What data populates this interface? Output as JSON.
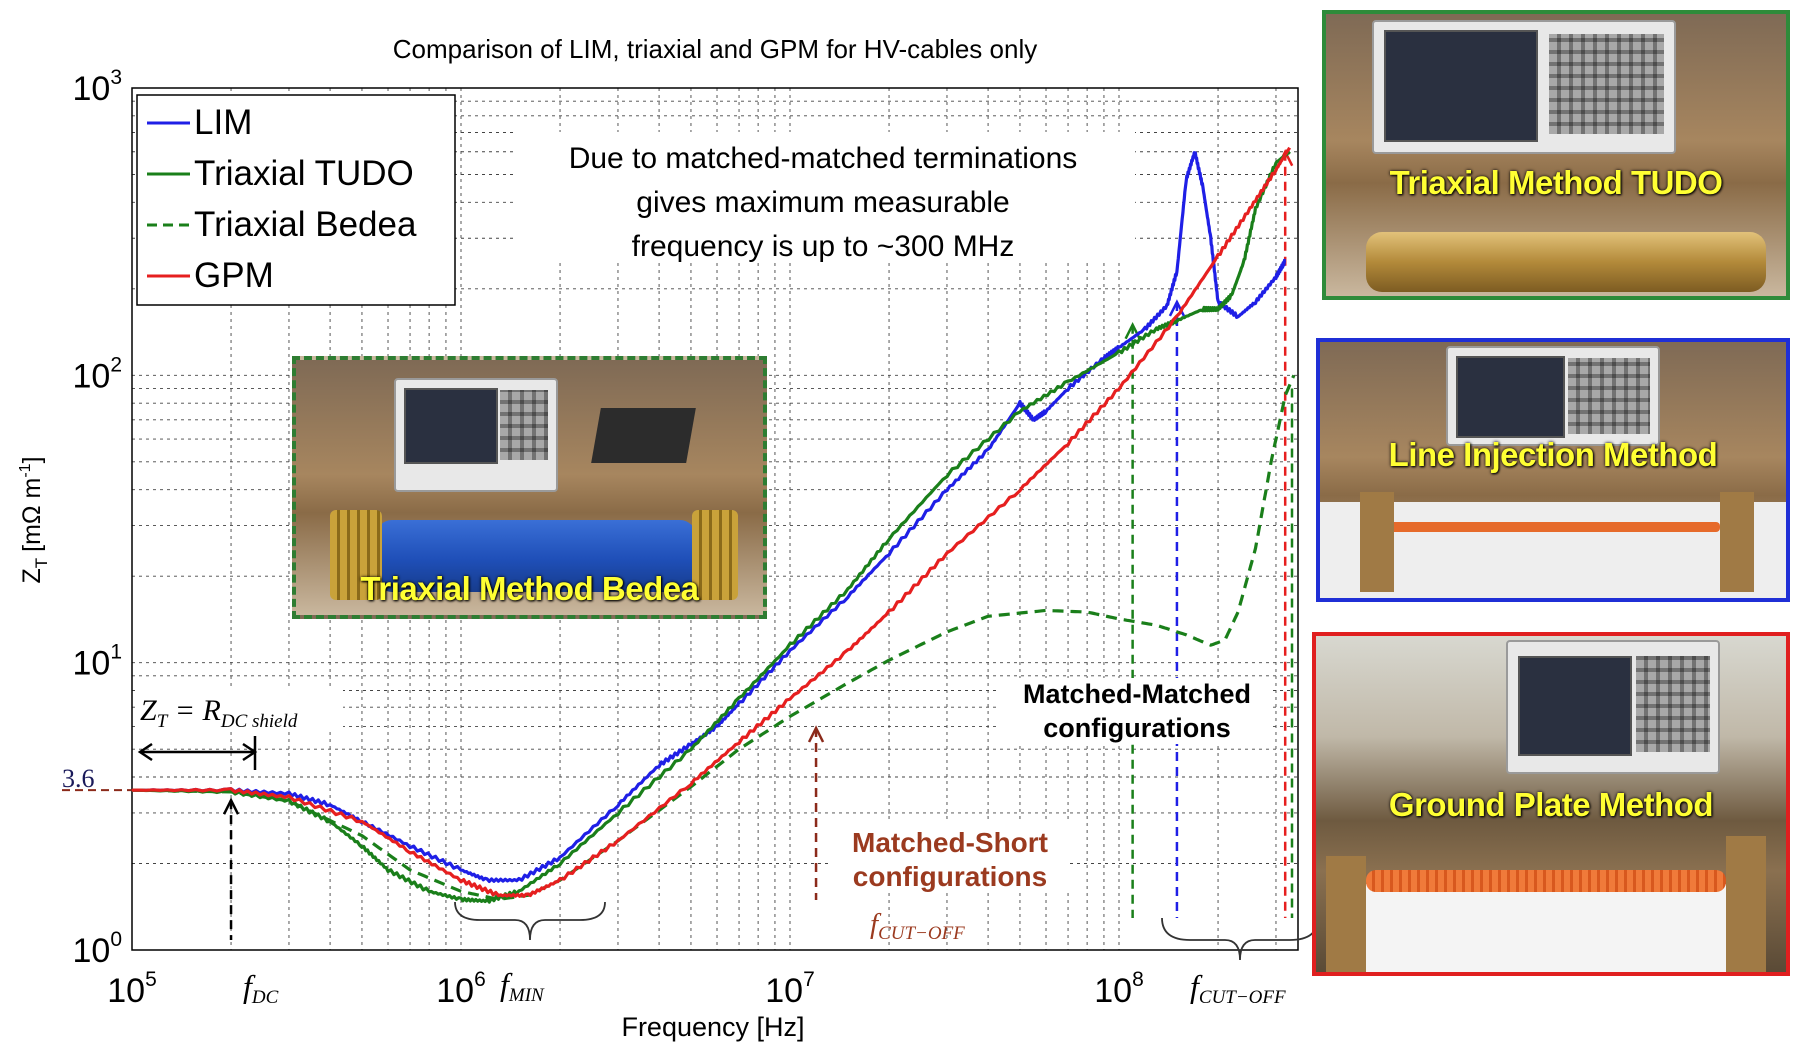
{
  "chart_data": {
    "type": "line",
    "title": "Comparison of LIM,  triaxial and GPM for HV-cables only",
    "xlabel": "Frequency [Hz]",
    "ylabel": "Z",
    "ylabel_sub": "T",
    "ylabel_unit": "[mΩ m",
    "ylabel_sup": "-1",
    "ylabel_close": "]",
    "x_scale": "log",
    "y_scale": "log",
    "xlim": [
      100000,
      350000000
    ],
    "ylim": [
      1,
      1000
    ],
    "x_ticks": [
      {
        "value": 100000,
        "base": "10",
        "exp": "5"
      },
      {
        "value": 1000000,
        "base": "10",
        "exp": "6"
      },
      {
        "value": 10000000,
        "base": "10",
        "exp": "7"
      },
      {
        "value": 100000000,
        "base": "10",
        "exp": "8"
      }
    ],
    "y_ticks": [
      {
        "value": 1,
        "base": "10",
        "exp": "0"
      },
      {
        "value": 10,
        "base": "10",
        "exp": "1"
      },
      {
        "value": 100,
        "base": "10",
        "exp": "2"
      },
      {
        "value": 1000,
        "base": "10",
        "exp": "3"
      }
    ],
    "grid": true,
    "legend_position": "top-left",
    "series": [
      {
        "name": "LIM",
        "color": "#1f1fe6",
        "style": "solid",
        "points": [
          [
            100000,
            3.6
          ],
          [
            200000,
            3.6
          ],
          [
            300000,
            3.5
          ],
          [
            400000,
            3.2
          ],
          [
            500000,
            2.8
          ],
          [
            700000,
            2.3
          ],
          [
            1000000,
            1.9
          ],
          [
            1200000,
            1.75
          ],
          [
            1500000,
            1.75
          ],
          [
            2000000,
            2.1
          ],
          [
            3000000,
            3.2
          ],
          [
            4000000,
            4.4
          ],
          [
            5000000,
            5.2
          ],
          [
            6000000,
            6.0
          ],
          [
            7000000,
            7.2
          ],
          [
            10000000,
            11.0
          ],
          [
            15000000,
            17.0
          ],
          [
            20000000,
            24.0
          ],
          [
            30000000,
            40.0
          ],
          [
            40000000,
            55.0
          ],
          [
            50000000,
            80.0
          ],
          [
            55000000,
            70.0
          ],
          [
            60000000,
            75.0
          ],
          [
            70000000,
            90.0
          ],
          [
            90000000,
            115.0
          ],
          [
            100000000,
            125.0
          ],
          [
            120000000,
            145.0
          ],
          [
            140000000,
            175.0
          ],
          [
            150000000,
            230.0
          ],
          [
            160000000,
            480.0
          ],
          [
            170000000,
            600.0
          ],
          [
            180000000,
            450.0
          ],
          [
            190000000,
            300.0
          ],
          [
            200000000,
            180.0
          ],
          [
            230000000,
            160.0
          ],
          [
            260000000,
            180.0
          ],
          [
            300000000,
            220.0
          ],
          [
            320000000,
            250.0
          ]
        ]
      },
      {
        "name": "Triaxial TUDO",
        "color": "#1a7f1a",
        "style": "solid",
        "points": [
          [
            100000,
            3.6
          ],
          [
            200000,
            3.55
          ],
          [
            300000,
            3.3
          ],
          [
            400000,
            2.8
          ],
          [
            500000,
            2.3
          ],
          [
            600000,
            1.9
          ],
          [
            800000,
            1.6
          ],
          [
            1000000,
            1.5
          ],
          [
            1200000,
            1.48
          ],
          [
            1500000,
            1.6
          ],
          [
            2000000,
            2.0
          ],
          [
            3000000,
            3.0
          ],
          [
            5000000,
            5.0
          ],
          [
            7000000,
            7.5
          ],
          [
            10000000,
            11.5
          ],
          [
            15000000,
            18.0
          ],
          [
            20000000,
            27.0
          ],
          [
            30000000,
            45.0
          ],
          [
            50000000,
            75.0
          ],
          [
            70000000,
            95.0
          ],
          [
            100000000,
            120.0
          ],
          [
            130000000,
            145.0
          ],
          [
            150000000,
            155.0
          ],
          [
            180000000,
            170.0
          ],
          [
            200000000,
            170.0
          ],
          [
            220000000,
            190.0
          ],
          [
            240000000,
            250.0
          ],
          [
            260000000,
            380.0
          ],
          [
            300000000,
            550.0
          ],
          [
            330000000,
            600.0
          ]
        ]
      },
      {
        "name": "Triaxial Bedea",
        "color": "#1a7f1a",
        "style": "dashed",
        "points": [
          [
            100000,
            3.6
          ],
          [
            200000,
            3.55
          ],
          [
            300000,
            3.3
          ],
          [
            500000,
            2.5
          ],
          [
            700000,
            1.9
          ],
          [
            1000000,
            1.6
          ],
          [
            1300000,
            1.5
          ],
          [
            1600000,
            1.55
          ],
          [
            2000000,
            1.75
          ],
          [
            3000000,
            2.4
          ],
          [
            5000000,
            3.7
          ],
          [
            7000000,
            5.0
          ],
          [
            10000000,
            6.5
          ],
          [
            15000000,
            8.5
          ],
          [
            20000000,
            10.2
          ],
          [
            30000000,
            12.8
          ],
          [
            40000000,
            14.5
          ],
          [
            60000000,
            15.2
          ],
          [
            80000000,
            15.0
          ],
          [
            100000000,
            14.2
          ],
          [
            130000000,
            13.5
          ],
          [
            160000000,
            12.5
          ],
          [
            190000000,
            11.5
          ],
          [
            210000000,
            12.0
          ],
          [
            230000000,
            15.0
          ],
          [
            260000000,
            25.0
          ],
          [
            290000000,
            50.0
          ],
          [
            320000000,
            85.0
          ],
          [
            340000000,
            100.0
          ]
        ]
      },
      {
        "name": "GPM",
        "color": "#e61f1f",
        "style": "solid",
        "points": [
          [
            100000,
            3.6
          ],
          [
            200000,
            3.6
          ],
          [
            300000,
            3.4
          ],
          [
            500000,
            2.8
          ],
          [
            700000,
            2.2
          ],
          [
            1000000,
            1.75
          ],
          [
            1300000,
            1.55
          ],
          [
            1600000,
            1.55
          ],
          [
            2000000,
            1.75
          ],
          [
            3000000,
            2.4
          ],
          [
            5000000,
            3.8
          ],
          [
            7000000,
            5.3
          ],
          [
            10000000,
            7.5
          ],
          [
            15000000,
            11.0
          ],
          [
            20000000,
            15.0
          ],
          [
            30000000,
            24.0
          ],
          [
            50000000,
            40.0
          ],
          [
            70000000,
            58.0
          ],
          [
            100000000,
            90.0
          ],
          [
            150000000,
            160.0
          ],
          [
            200000000,
            260.0
          ],
          [
            250000000,
            380.0
          ],
          [
            300000000,
            520.0
          ],
          [
            330000000,
            620.0
          ]
        ]
      }
    ],
    "dc_line": {
      "value": 3.6,
      "label": "3.6"
    },
    "annotations": {
      "termination_note": [
        "Due to matched-matched terminations",
        "gives maximum measurable",
        "frequency is up to ~300 MHz"
      ],
      "zt_formula": "Z",
      "zt_formula_sub": "T",
      "zt_formula_eq": " = R",
      "zt_formula_rsub": "DC shield",
      "f_dc": "f",
      "f_dc_sub": "DC",
      "f_min": "f",
      "f_min_sub": "MIN",
      "matched_matched": [
        "Matched-Matched",
        "configurations"
      ],
      "matched_short": [
        "Matched-Short",
        "configurations"
      ],
      "f_cutoff_1": "f",
      "f_cutoff_1_sub": "CUT−OFF",
      "f_cutoff_2": "f",
      "f_cutoff_2_sub": "CUT−OFF"
    },
    "markers": [
      {
        "x": 200000,
        "color": "#000000",
        "label": "f_DC"
      },
      {
        "x": 12000000,
        "color": "#8b2a1a",
        "label": "f_CUT-OFF matched-short"
      },
      {
        "x": 110000000,
        "color": "#1a7f1a",
        "label": "Triaxial TUDO cut-off"
      },
      {
        "x": 150000000,
        "color": "#1f1fe6",
        "label": "LIM cut-off"
      },
      {
        "x": 320000000,
        "color": "#e61f1f",
        "label": "GPM cut-off"
      }
    ]
  },
  "photos": {
    "bedea": {
      "caption": "Triaxial Method Bedea",
      "frame_color": "#2e7d32",
      "frame_style": "dashed"
    },
    "tudo": {
      "caption": "Triaxial Method TUDO",
      "frame_color": "#2e8b3a",
      "frame_style": "solid"
    },
    "lim": {
      "caption": "Line Injection Method",
      "frame_color": "#1f2fd6",
      "frame_style": "solid"
    },
    "gpm": {
      "caption": "Ground Plate Method",
      "frame_color": "#e01f1f",
      "frame_style": "solid"
    }
  }
}
